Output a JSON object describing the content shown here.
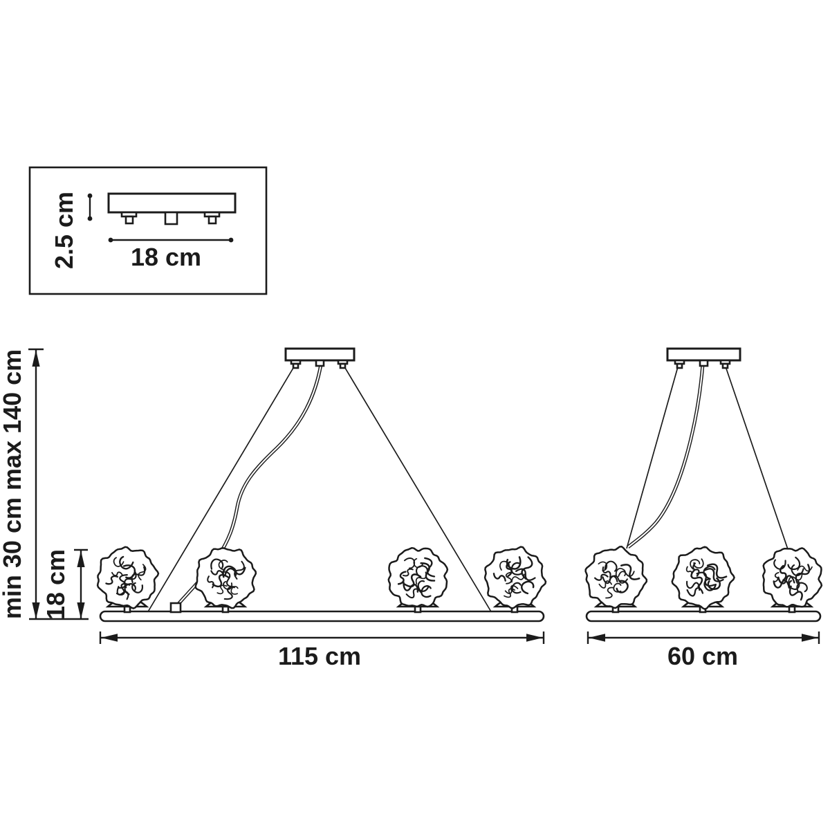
{
  "background": "#ffffff",
  "line_color": "#1b1b1b",
  "inset": {
    "height_label": "2.5 cm",
    "width_label": "18 cm"
  },
  "left_fixture": {
    "lamp_count": 4,
    "hang_range_label": "min 30 cm max 140 cm",
    "lamp_height_label": "18 cm",
    "width_label": "115 cm"
  },
  "right_fixture": {
    "lamp_count": 3,
    "width_label": "60 cm"
  }
}
